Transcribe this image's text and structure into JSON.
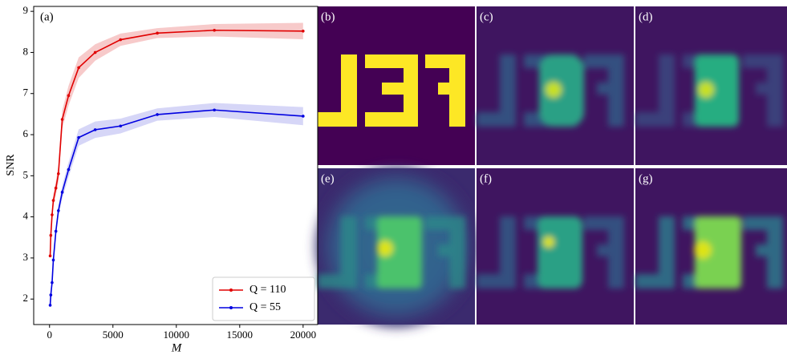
{
  "chart_data": {
    "type": "line",
    "panel_label": "(a)",
    "xlabel": "M",
    "ylabel": "SNR",
    "x": [
      50,
      100,
      200,
      300,
      500,
      700,
      1000,
      1500,
      2300,
      3600,
      5600,
      8500,
      13000,
      20000
    ],
    "series": [
      {
        "name": "Q = 110",
        "color": "#e00000",
        "band_color": "#f4b4b4",
        "values": [
          3.05,
          3.55,
          4.05,
          4.4,
          4.7,
          5.05,
          6.37,
          6.95,
          7.63,
          8.0,
          8.31,
          8.47,
          8.54,
          8.52
        ],
        "errors": [
          0.08,
          0.1,
          0.12,
          0.15,
          0.17,
          0.2,
          0.22,
          0.24,
          0.25,
          0.2,
          0.15,
          0.12,
          0.15,
          0.2
        ]
      },
      {
        "name": "Q = 55",
        "color": "#0000e0",
        "band_color": "#c4c4f4",
        "values": [
          1.85,
          2.1,
          2.4,
          2.95,
          3.65,
          4.15,
          4.6,
          5.15,
          5.93,
          6.12,
          6.21,
          6.49,
          6.6,
          6.45
        ],
        "errors": [
          0.05,
          0.06,
          0.08,
          0.1,
          0.12,
          0.14,
          0.16,
          0.18,
          0.2,
          0.2,
          0.18,
          0.15,
          0.17,
          0.22
        ]
      }
    ],
    "xlim": [
      -1250,
      21150
    ],
    "ylim": [
      1.38,
      9.12
    ],
    "xticks": [
      0,
      5000,
      10000,
      15000,
      20000
    ],
    "yticks": [
      2,
      3,
      4,
      5,
      6,
      7,
      8,
      9
    ],
    "legend": "lower right"
  },
  "panels": [
    {
      "label": "(b)"
    },
    {
      "label": "(c)"
    },
    {
      "label": "(d)"
    },
    {
      "label": "(e)"
    },
    {
      "label": "(f)"
    },
    {
      "label": "(g)"
    }
  ]
}
